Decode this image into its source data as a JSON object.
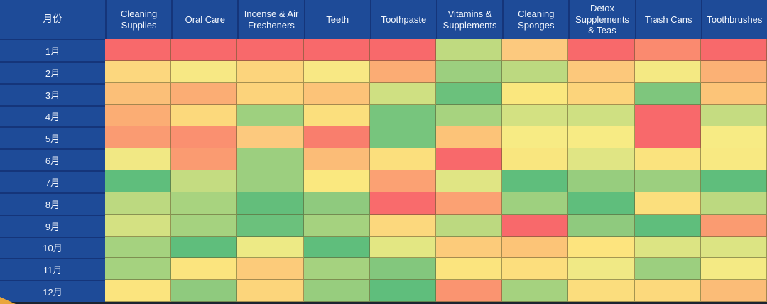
{
  "chart_data": {
    "type": "heatmap",
    "corner_label": "月份",
    "x_categories": [
      "Cleaning Supplies",
      "Oral Care",
      "Incense & Air Fresheners",
      "Teeth",
      "Toothpaste",
      "Vitamins & Supplements",
      "Cleaning Sponges",
      "Detox Supplements & Teas",
      "Trash Cans",
      "Toothbrushes"
    ],
    "y_categories": [
      "1月",
      "2月",
      "3月",
      "4月",
      "5月",
      "6月",
      "7月",
      "8月",
      "9月",
      "10月",
      "11月",
      "12月"
    ],
    "cell_colors": [
      [
        "#F8696B",
        "#F8696B",
        "#F8696B",
        "#F8696B",
        "#F8696B",
        "#BFDA80",
        "#FCC97E",
        "#F8696B",
        "#FA8A6F",
        "#F8696B"
      ],
      [
        "#FCD77E",
        "#F7E884",
        "#FCD47C",
        "#F8E884",
        "#FBAC74",
        "#9CCF7F",
        "#BCD980",
        "#FCC87B",
        "#F4E983",
        "#FBB175"
      ],
      [
        "#FBBF78",
        "#FBAD74",
        "#FCD37B",
        "#FCC378",
        "#CFE082",
        "#6BC17C",
        "#FAE77E",
        "#FCD47B",
        "#7EC67D",
        "#FCC478"
      ],
      [
        "#FBAD74",
        "#FCD97C",
        "#9ED07F",
        "#FBDF7D",
        "#77C57D",
        "#A7D37F",
        "#D3E182",
        "#CFE082",
        "#F8696B",
        "#C5DC81"
      ],
      [
        "#FA9B72",
        "#FA9070",
        "#FCC97E",
        "#F97E6D",
        "#77C57D",
        "#FCC378",
        "#F7EB84",
        "#F7EB84",
        "#F8696B",
        "#F7EB84"
      ],
      [
        "#F1E884",
        "#FA9B71",
        "#9CCF7F",
        "#FBBC77",
        "#FBDF7D",
        "#F8696B",
        "#F9E67F",
        "#E0E584",
        "#FAE37E",
        "#F8E982"
      ],
      [
        "#5FBE7C",
        "#C4DC81",
        "#9CCF7F",
        "#FAE87F",
        "#FBA173",
        "#E0E584",
        "#5FBE7C",
        "#97CD7E",
        "#9CCF7F",
        "#5FBE7C"
      ],
      [
        "#BCD980",
        "#A8D37F",
        "#63BE7B",
        "#8FCA7E",
        "#F96B6C",
        "#FBA173",
        "#9ED07F",
        "#5FBE7C",
        "#FBDF7D",
        "#BCD980"
      ],
      [
        "#D4E182",
        "#A5D27F",
        "#6BC17C",
        "#A5D27F",
        "#FCD87D",
        "#BCD980",
        "#F8696B",
        "#8FCA7E",
        "#5FBE7C",
        "#FA9B71"
      ],
      [
        "#A5D27F",
        "#5FBE7C",
        "#EDEA85",
        "#5FBE7C",
        "#E3E783",
        "#FCCB7A",
        "#FCC477",
        "#FDE47E",
        "#DCE483",
        "#DCE483"
      ],
      [
        "#A5D27F",
        "#FBE47E",
        "#FCCB7A",
        "#A5D27F",
        "#83C77D",
        "#FBE47E",
        "#FCDE7D",
        "#F0E985",
        "#9CCF7F",
        "#F4EA84"
      ],
      [
        "#FBE47E",
        "#8FCA7E",
        "#FCD57B",
        "#97CD7E",
        "#5FBE7C",
        "#FA9470",
        "#A5D27F",
        "#FBDD7D",
        "#FCD97C",
        "#FBBC77"
      ]
    ],
    "colors": {
      "header_background": "#1E4B98",
      "header_separator": "#15357A",
      "header_text": "#F2F6FC",
      "scale_low_red": "#F8696B",
      "scale_mid_yellow": "#FFEB84",
      "scale_high_green": "#63BE7B"
    },
    "layout": {
      "legend": "none",
      "grid": "on",
      "values_displayed": false
    }
  }
}
